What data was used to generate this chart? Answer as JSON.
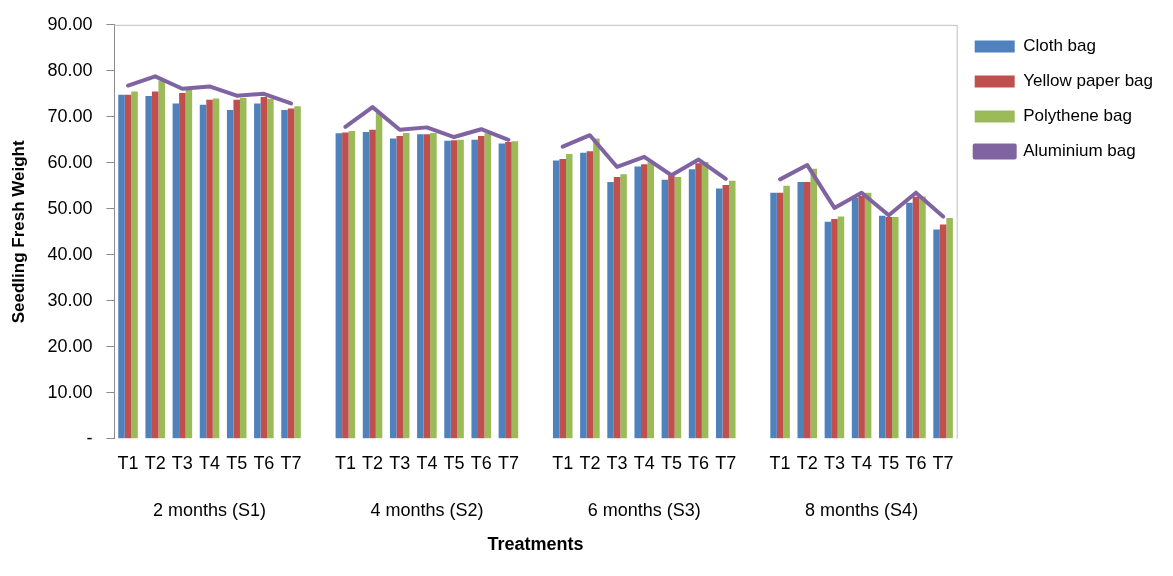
{
  "chart_data": {
    "type": "bar",
    "xlabel": "Treatments",
    "ylabel": "Seedling Fresh Weight",
    "categories": [
      "T1",
      "T2",
      "T3",
      "T4",
      "T5",
      "T6",
      "T7",
      null,
      "T1",
      "T2",
      "T3",
      "T4",
      "T5",
      "T6",
      "T7",
      null,
      "T1",
      "T2",
      "T3",
      "T4",
      "T5",
      "T6",
      "T7",
      null,
      "T1",
      "T2",
      "T3",
      "T4",
      "T5",
      "T6",
      "T7"
    ],
    "series": [
      {
        "name": "Cloth bag",
        "color": "#4f81bd",
        "values": [
          74.8,
          74.5,
          72.9,
          72.6,
          71.5,
          72.9,
          71.5,
          null,
          66.4,
          66.7,
          65.3,
          66.2,
          64.8,
          65.0,
          64.2,
          null,
          60.5,
          62.2,
          55.8,
          59.2,
          56.3,
          58.6,
          54.4,
          null,
          53.5,
          55.8,
          47.2,
          52.4,
          48.5,
          51.3,
          45.5
        ]
      },
      {
        "name": "Yellow paper bag",
        "color": "#c0504d",
        "values": [
          74.8,
          75.5,
          75.2,
          73.7,
          73.7,
          74.3,
          71.8,
          null,
          66.6,
          67.2,
          65.8,
          66.2,
          64.9,
          65.8,
          64.5,
          null,
          60.8,
          62.5,
          56.9,
          59.7,
          57.3,
          59.9,
          55.2,
          null,
          53.5,
          55.8,
          47.8,
          52.8,
          48.2,
          52.6,
          46.6
        ]
      },
      {
        "name": "Polythene bag",
        "color": "#9bbb59",
        "values": [
          75.5,
          77.9,
          75.8,
          74.0,
          74.1,
          73.9,
          72.3,
          null,
          66.9,
          70.8,
          66.5,
          66.5,
          65.0,
          66.4,
          64.7,
          null,
          61.9,
          65.3,
          57.5,
          60.1,
          56.9,
          60.2,
          56.1,
          null,
          55.0,
          58.7,
          48.3,
          53.5,
          48.2,
          52.7,
          48.0
        ]
      },
      {
        "name": "Aluminium bag",
        "type": "line",
        "color": "#8064a2",
        "values": [
          76.8,
          78.8,
          76.1,
          76.6,
          74.6,
          75.0,
          72.9,
          null,
          67.8,
          72.1,
          67.2,
          67.7,
          65.6,
          67.3,
          65.0,
          null,
          63.5,
          66.0,
          59.1,
          61.3,
          57.3,
          60.7,
          56.5,
          null,
          56.4,
          59.5,
          50.2,
          53.5,
          48.6,
          53.5,
          48.3
        ]
      }
    ],
    "ylim": [
      0,
      90
    ],
    "yticks": [
      {
        "value": 0,
        "label": "-"
      },
      {
        "value": 10,
        "label": "10.00"
      },
      {
        "value": 20,
        "label": "20.00"
      },
      {
        "value": 30,
        "label": "30.00"
      },
      {
        "value": 40,
        "label": "40.00"
      },
      {
        "value": 50,
        "label": "50.00"
      },
      {
        "value": 60,
        "label": "60.00"
      },
      {
        "value": 70,
        "label": "70.00"
      },
      {
        "value": 80,
        "label": "80.00"
      },
      {
        "value": 90,
        "label": "90.00"
      }
    ],
    "grid": false,
    "legend": "top right",
    "marker": "none",
    "annotations": [
      "2 months (S1)",
      "4 months (S2)",
      "6 months (S3)",
      "8 months (S4)"
    ]
  }
}
